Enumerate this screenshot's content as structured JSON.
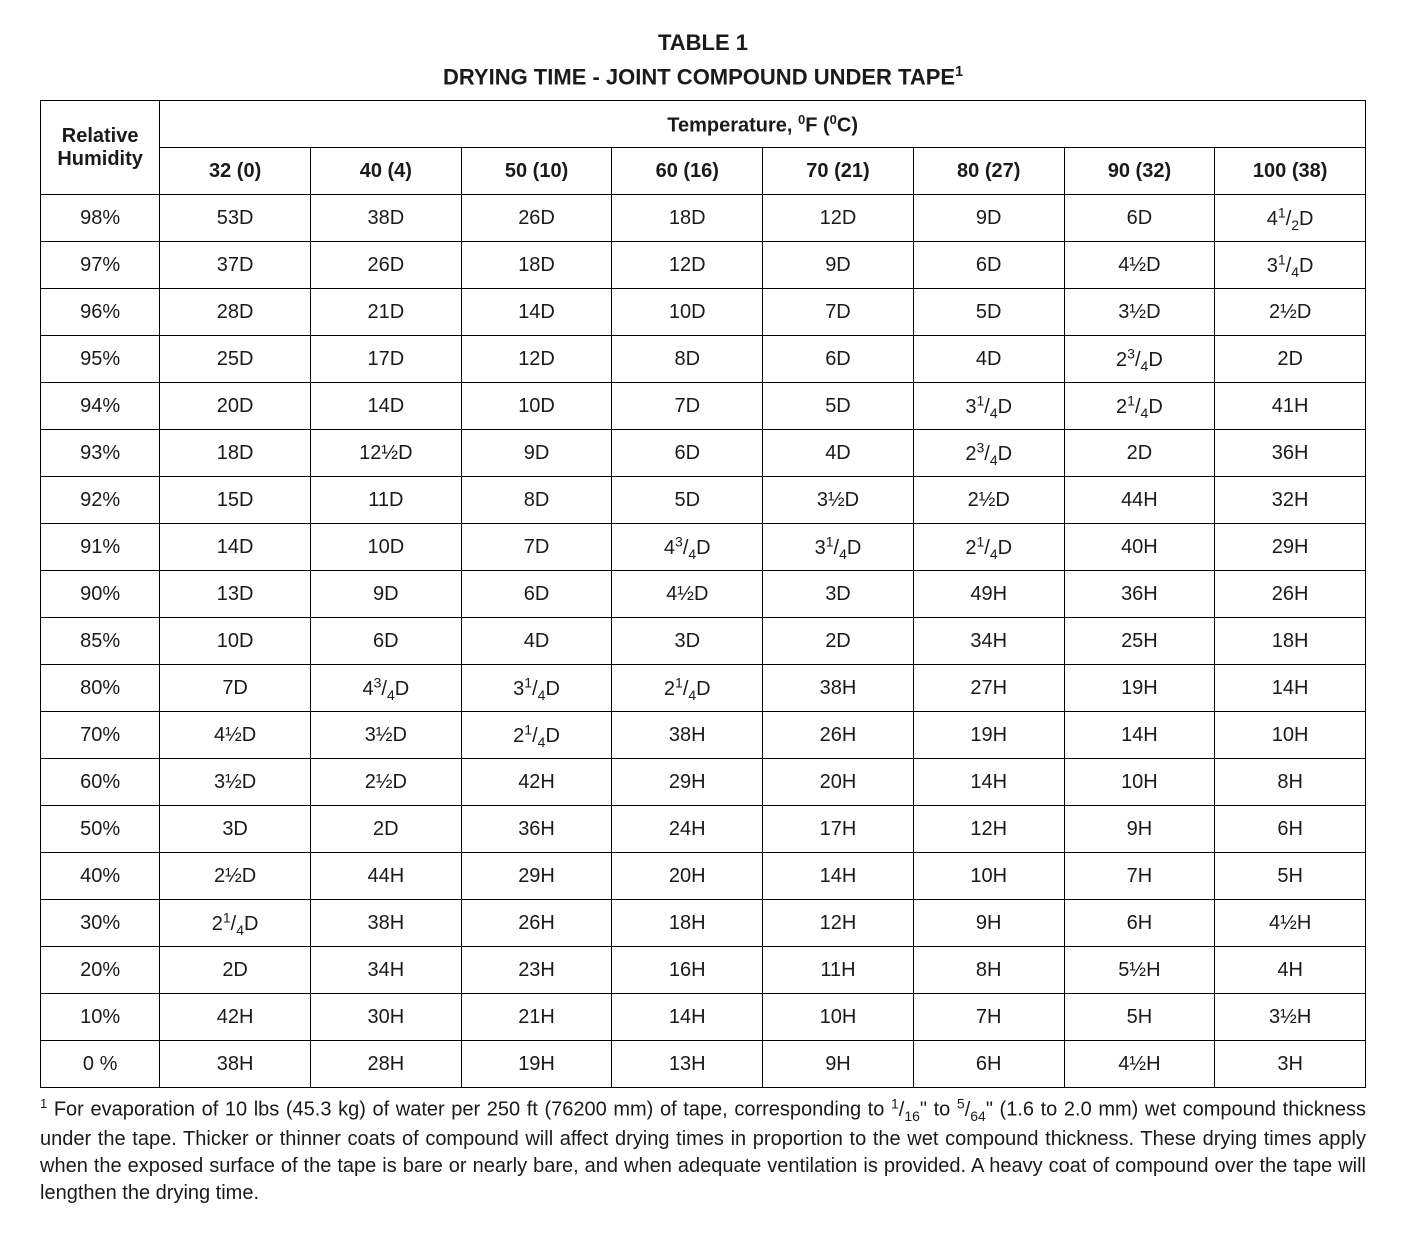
{
  "title_line1": "TABLE 1",
  "title_line2_pre": "DRYING TIME - JOINT COMPOUND UNDER TAPE",
  "title_line2_sup": "1",
  "header_rh_line1": "Relative",
  "header_rh_line2": "Humidity",
  "header_temp_pre": "Temperature, ",
  "header_temp_sup1": "0",
  "header_temp_mid": "F (",
  "header_temp_sup2": "0",
  "header_temp_end": "C)",
  "temp_cols": [
    "32 (0)",
    "40 (4)",
    "50 (10)",
    "60 (16)",
    "70 (21)",
    "80 (27)",
    "90 (32)",
    "100 (38)"
  ],
  "rows": [
    {
      "rh": "98%",
      "c": [
        "53D",
        "38D",
        "26D",
        "18D",
        "12D",
        "9D",
        "6D",
        {
          "n": "4",
          "sup": "1",
          "sub": "2",
          "u": "D"
        }
      ]
    },
    {
      "rh": "97%",
      "c": [
        "37D",
        "26D",
        "18D",
        "12D",
        "9D",
        "6D",
        "4½D",
        {
          "n": "3",
          "sup": "1",
          "sub": "4",
          "u": "D"
        }
      ]
    },
    {
      "rh": "96%",
      "c": [
        "28D",
        "21D",
        "14D",
        "10D",
        "7D",
        "5D",
        "3½D",
        "2½D"
      ]
    },
    {
      "rh": "95%",
      "c": [
        "25D",
        "17D",
        "12D",
        "8D",
        "6D",
        "4D",
        {
          "n": "2",
          "sup": "3",
          "sub": "4",
          "u": "D"
        },
        "2D"
      ]
    },
    {
      "rh": "94%",
      "c": [
        "20D",
        "14D",
        "10D",
        "7D",
        "5D",
        {
          "n": "3",
          "sup": "1",
          "sub": "4",
          "u": "D"
        },
        {
          "n": "2",
          "sup": "1",
          "sub": "4",
          "u": "D"
        },
        "41H"
      ]
    },
    {
      "rh": "93%",
      "c": [
        "18D",
        "12½D",
        "9D",
        "6D",
        "4D",
        {
          "n": "2",
          "sup": "3",
          "sub": "4",
          "u": "D"
        },
        "2D",
        "36H"
      ]
    },
    {
      "rh": "92%",
      "c": [
        "15D",
        "11D",
        "8D",
        "5D",
        "3½D",
        "2½D",
        "44H",
        "32H"
      ]
    },
    {
      "rh": "91%",
      "c": [
        "14D",
        "10D",
        "7D",
        {
          "n": "4",
          "sup": "3",
          "sub": "4",
          "u": "D"
        },
        {
          "n": "3",
          "sup": "1",
          "sub": "4",
          "u": "D"
        },
        {
          "n": "2",
          "sup": "1",
          "sub": "4",
          "u": "D"
        },
        "40H",
        "29H"
      ]
    },
    {
      "rh": "90%",
      "c": [
        "13D",
        "9D",
        "6D",
        "4½D",
        "3D",
        "49H",
        "36H",
        "26H"
      ]
    },
    {
      "rh": "85%",
      "c": [
        "10D",
        "6D",
        "4D",
        "3D",
        "2D",
        "34H",
        "25H",
        "18H"
      ]
    },
    {
      "rh": "80%",
      "c": [
        "7D",
        {
          "n": "4",
          "sup": "3",
          "sub": "4",
          "u": "D"
        },
        {
          "n": "3",
          "sup": "1",
          "sub": "4",
          "u": "D"
        },
        {
          "n": "2",
          "sup": "1",
          "sub": "4",
          "u": "D"
        },
        "38H",
        "27H",
        "19H",
        "14H"
      ]
    },
    {
      "rh": "70%",
      "c": [
        "4½D",
        "3½D",
        {
          "n": "2",
          "sup": "1",
          "sub": "4",
          "u": "D"
        },
        "38H",
        "26H",
        "19H",
        "14H",
        "10H"
      ]
    },
    {
      "rh": "60%",
      "c": [
        "3½D",
        "2½D",
        "42H",
        "29H",
        "20H",
        "14H",
        "10H",
        "8H"
      ]
    },
    {
      "rh": "50%",
      "c": [
        "3D",
        "2D",
        "36H",
        "24H",
        "17H",
        "12H",
        "9H",
        "6H"
      ]
    },
    {
      "rh": "40%",
      "c": [
        "2½D",
        "44H",
        "29H",
        "20H",
        "14H",
        "10H",
        "7H",
        "5H"
      ]
    },
    {
      "rh": "30%",
      "c": [
        {
          "n": "2",
          "sup": "1",
          "sub": "4",
          "u": "D"
        },
        "38H",
        "26H",
        "18H",
        "12H",
        "9H",
        "6H",
        "4½H"
      ]
    },
    {
      "rh": "20%",
      "c": [
        "2D",
        "34H",
        "23H",
        "16H",
        "11H",
        "8H",
        "5½H",
        "4H"
      ]
    },
    {
      "rh": "10%",
      "c": [
        "42H",
        "30H",
        "21H",
        "14H",
        "10H",
        "7H",
        "5H",
        "3½H"
      ]
    },
    {
      "rh": "0 %",
      "c": [
        "38H",
        "28H",
        "19H",
        "13H",
        "9H",
        "6H",
        "4½H",
        "3H"
      ]
    }
  ],
  "footnote_sup": "1",
  "footnote_p1": " For evaporation of 10 lbs (45.3 kg) of water per 250 ft (76200 mm) of tape, corresponding to ",
  "footnote_f1_sup": "1",
  "footnote_f1_sub": "16",
  "footnote_mid1": "\" to ",
  "footnote_f2_sup": "5",
  "footnote_f2_sub": "64",
  "footnote_p2": "\" (1.6 to 2.0 mm) wet compound thickness under the tape. Thicker or thinner coats of compound will affect drying times in proportion to the wet compound thickness.  These drying times apply  when the exposed surface of the tape is bare or nearly bare, and when adequate ventilation is provided.  A heavy coat of compound over the tape will lengthen the drying time."
}
